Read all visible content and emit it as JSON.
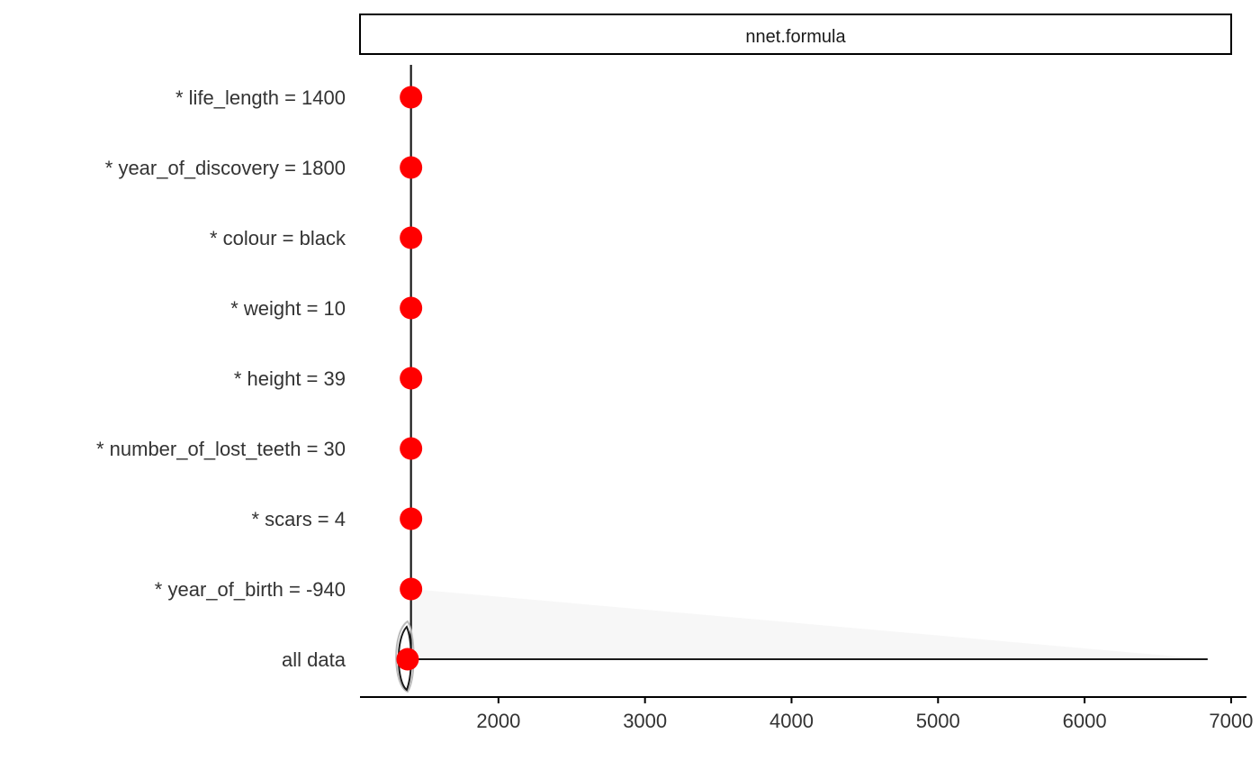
{
  "chart_data": {
    "type": "break-down",
    "facet_label": "nnet.formula",
    "categories": [
      "* life_length = 1400",
      "* year_of_discovery = 1800",
      "* colour = black",
      "* weight = 10",
      "* height = 39",
      "* number_of_lost_teeth = 30",
      "* scars = 4",
      "* year_of_birth = -940",
      "all data"
    ],
    "point_values": [
      1403,
      1403,
      1403,
      1403,
      1403,
      1403,
      1403,
      1403,
      1380
    ],
    "all_data_range": [
      1340,
      6840
    ],
    "x_ticks": [
      2000,
      3000,
      4000,
      5000,
      6000,
      7000
    ],
    "x_range": [
      1055,
      7105
    ],
    "grid": false,
    "colors": {
      "point": "#ff0000",
      "line": "#1a1a1a",
      "axis": "#000000"
    }
  }
}
